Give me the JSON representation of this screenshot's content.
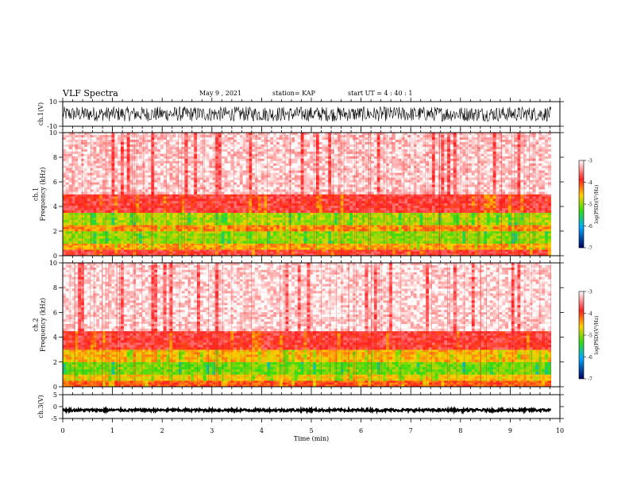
{
  "header": {
    "title": "VLF Spectra",
    "date": "May 9 , 2021",
    "station": "station= KAP",
    "start": "start UT = 4 : 40 : 1"
  },
  "chart_data": [
    {
      "type": "line",
      "panel": "ch1-waveform",
      "ylabel": "ch.1(V)",
      "ylim": [
        -10,
        10
      ],
      "yticks": [
        "10",
        "-10"
      ],
      "xlim": [
        0,
        10
      ],
      "x_extent_min": 9.82,
      "noise_amplitude_V": [
        -6,
        6
      ]
    },
    {
      "type": "heatmap",
      "panel": "ch1-spectrogram",
      "ylabel": "ch.1\nFrequency (kHz)",
      "ylim": [
        0,
        10
      ],
      "yticks": [
        "0",
        "2",
        "4",
        "6",
        "8",
        "10"
      ],
      "xlim": [
        0,
        10
      ],
      "x_extent_min": 9.82,
      "colorbar": {
        "label": "log(PSD)(V²/Hz)",
        "range": [
          -7,
          -3
        ],
        "ticks": [
          "-3",
          "-4",
          "-5",
          "-6",
          "-7"
        ]
      },
      "bands": [
        {
          "f_kHz": [
            0,
            0.5
          ],
          "level": -3.8
        },
        {
          "f_kHz": [
            0.5,
            1.0
          ],
          "level": -4.4
        },
        {
          "f_kHz": [
            1.0,
            2.0
          ],
          "level": -5.0
        },
        {
          "f_kHz": [
            2.0,
            2.5
          ],
          "level": -4.3
        },
        {
          "f_kHz": [
            2.5,
            3.5
          ],
          "level": -4.9
        },
        {
          "f_kHz": [
            3.5,
            5.0
          ],
          "level": -3.8
        },
        {
          "f_kHz": [
            5.0,
            10.0
          ],
          "level": -3.2
        }
      ]
    },
    {
      "type": "heatmap",
      "panel": "ch2-spectrogram",
      "ylabel": "ch.2\nFrequency (kHz)",
      "ylim": [
        0,
        10
      ],
      "yticks": [
        "0",
        "2",
        "4",
        "6",
        "8",
        "10"
      ],
      "xlim": [
        0,
        10
      ],
      "x_extent_min": 9.82,
      "colorbar": {
        "label": "log(PSD)(V²/Hz)",
        "range": [
          -7,
          -3
        ],
        "ticks": [
          "-3",
          "-4",
          "-5",
          "-6",
          "-7"
        ]
      },
      "bands": [
        {
          "f_kHz": [
            0,
            0.5
          ],
          "level": -4.1
        },
        {
          "f_kHz": [
            0.5,
            1.0
          ],
          "level": -4.6
        },
        {
          "f_kHz": [
            1.0,
            2.0
          ],
          "level": -5.1
        },
        {
          "f_kHz": [
            2.0,
            3.0
          ],
          "level": -4.5
        },
        {
          "f_kHz": [
            3.0,
            4.5
          ],
          "level": -3.8
        },
        {
          "f_kHz": [
            4.5,
            10.0
          ],
          "level": -3.15
        }
      ]
    },
    {
      "type": "line",
      "panel": "ch3-waveform",
      "ylabel": "ch.3(V)",
      "ylim": [
        -5,
        5
      ],
      "yticks": [
        "5",
        "0",
        "-5"
      ],
      "xlim": [
        0,
        10
      ],
      "x_extent_min": 9.82,
      "level_V": -1.5,
      "noise_amplitude_V": [
        -2.0,
        -1.0
      ]
    },
    {
      "type": "axis",
      "panel": "time-axis",
      "xlabel": "Time (min)",
      "xlim": [
        0,
        10
      ],
      "xticks": [
        "0",
        "1",
        "2",
        "3",
        "4",
        "5",
        "6",
        "7",
        "8",
        "9",
        "10"
      ]
    }
  ]
}
